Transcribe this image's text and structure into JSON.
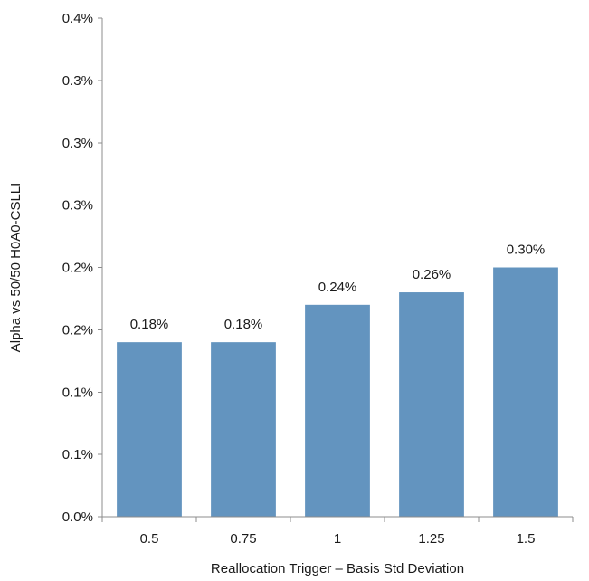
{
  "chart_data": {
    "type": "bar",
    "categories": [
      "0.5",
      "0.75",
      "1",
      "1.25",
      "1.5"
    ],
    "values": [
      0.18,
      0.18,
      0.24,
      0.26,
      0.3
    ],
    "data_labels": [
      "0.18%",
      "0.18%",
      "0.24%",
      "0.26%",
      "0.30%"
    ],
    "xlabel": "Reallocation Trigger – Basis Std Deviation",
    "ylabel": "Alpha vs 50/50 H0A0-CSLLI",
    "ylim": [
      0,
      0.4
    ],
    "yticks": [
      0,
      0.05,
      0.1,
      0.15,
      0.2,
      0.25,
      0.3,
      0.35,
      0.4
    ],
    "ytick_labels": [
      "0.0%",
      "0.1%",
      "0.1%",
      "0.2%",
      "0.2%",
      "0.3%",
      "0.3%",
      "0.3%",
      "0.4%"
    ],
    "grid": false,
    "legend": "none",
    "bar_color": "#6394bf"
  }
}
